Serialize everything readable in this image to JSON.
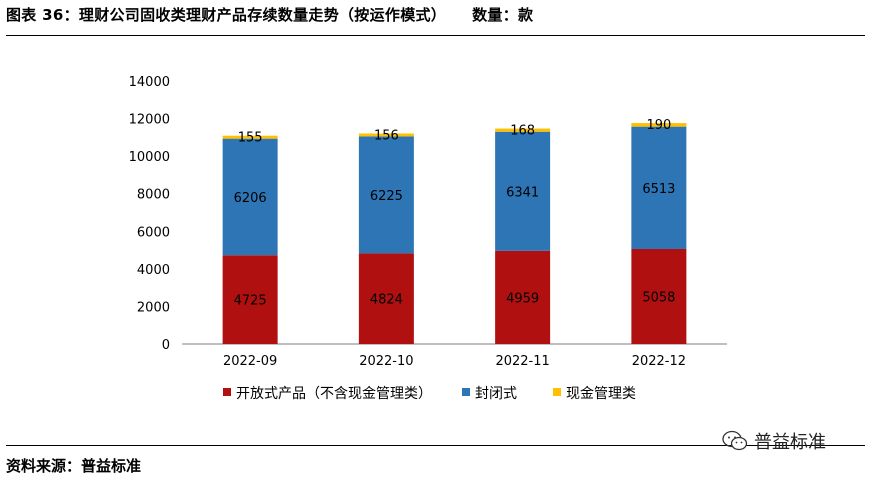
{
  "header": {
    "title": "图表 36：理财公司固收类理财产品存续数量走势（按运作模式）",
    "unit": "数量：款"
  },
  "source": "资料来源：普益标准",
  "watermark": {
    "text": "普益标准",
    "icon": "wechat-icon"
  },
  "chart_data": {
    "type": "bar",
    "stacked": true,
    "categories": [
      "2022-09",
      "2022-10",
      "2022-11",
      "2022-12"
    ],
    "series": [
      {
        "name": "开放式产品（不含现金管理类）",
        "color": "#b01010",
        "values": [
          4725,
          4824,
          4959,
          5058
        ]
      },
      {
        "name": "封闭式",
        "color": "#2e75b6",
        "values": [
          6206,
          6225,
          6341,
          6513
        ]
      },
      {
        "name": "现金管理类",
        "color": "#ffc000",
        "values": [
          155,
          156,
          168,
          190
        ]
      }
    ],
    "ylim": [
      0,
      14000
    ],
    "yticks": [
      0,
      2000,
      4000,
      6000,
      8000,
      10000,
      12000,
      14000
    ],
    "grid": false,
    "legend": "bottom"
  }
}
